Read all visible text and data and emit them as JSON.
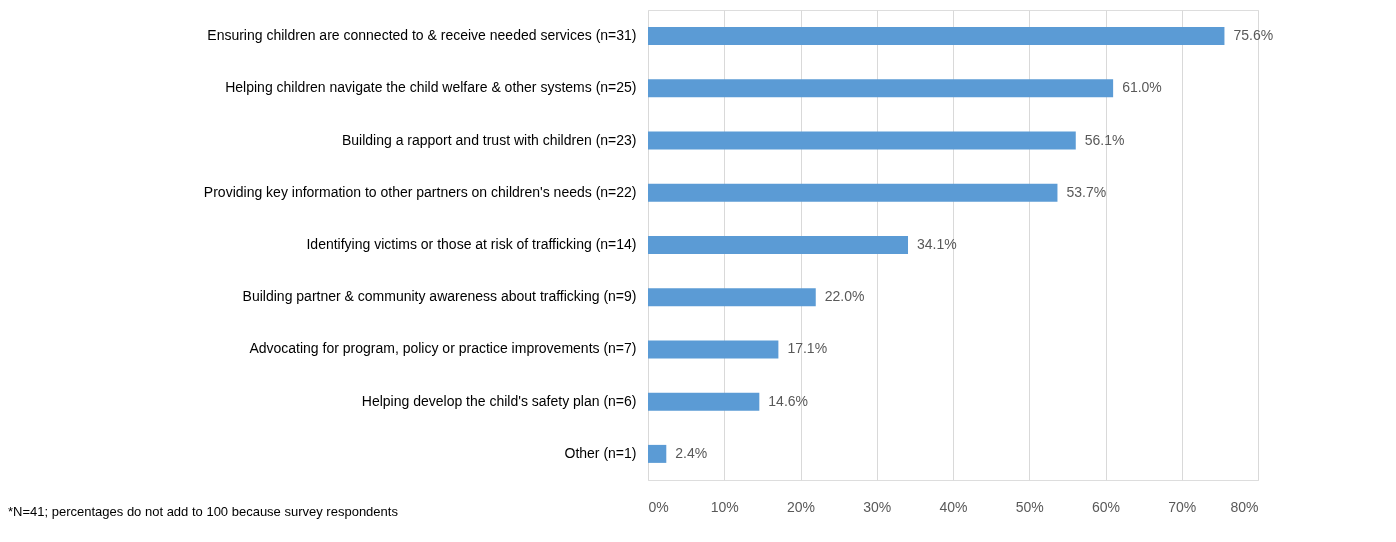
{
  "chart_data": {
    "type": "bar",
    "orientation": "horizontal",
    "categories": [
      "Ensuring children are connected to & receive needed services (n=31)",
      "Helping children navigate the child welfare & other systems (n=25)",
      "Building a rapport and trust with children (n=23)",
      "Providing key information to other partners on children's needs (n=22)",
      "Identifying victims or those at risk of trafficking (n=14)",
      "Building partner & community awareness about trafficking (n=9)",
      "Advocating for program, policy or practice improvements (n=7)",
      "Helping develop the child's safety plan (n=6)",
      "Other (n=1)"
    ],
    "values": [
      75.6,
      61.0,
      56.1,
      53.7,
      34.1,
      22.0,
      17.1,
      14.6,
      2.4
    ],
    "value_labels": [
      "75.6%",
      "61.0%",
      "56.1%",
      "53.7%",
      "34.1%",
      "22.0%",
      "17.1%",
      "14.6%",
      "2.4%"
    ],
    "color": "#5b9bd5",
    "xlim": [
      0,
      80
    ],
    "xticks": [
      {
        "value": 0,
        "label": "0%"
      },
      {
        "value": 10,
        "label": "10%"
      },
      {
        "value": 20,
        "label": "20%"
      },
      {
        "value": 30,
        "label": "30%"
      },
      {
        "value": 40,
        "label": "40%"
      },
      {
        "value": 50,
        "label": "50%"
      },
      {
        "value": 60,
        "label": "60%"
      },
      {
        "value": 70,
        "label": "70%"
      },
      {
        "value": 80,
        "label": "80%"
      }
    ],
    "grid": "x",
    "annotations": [
      "*N=41; percentages do not add to 100 because survey respondents"
    ]
  }
}
